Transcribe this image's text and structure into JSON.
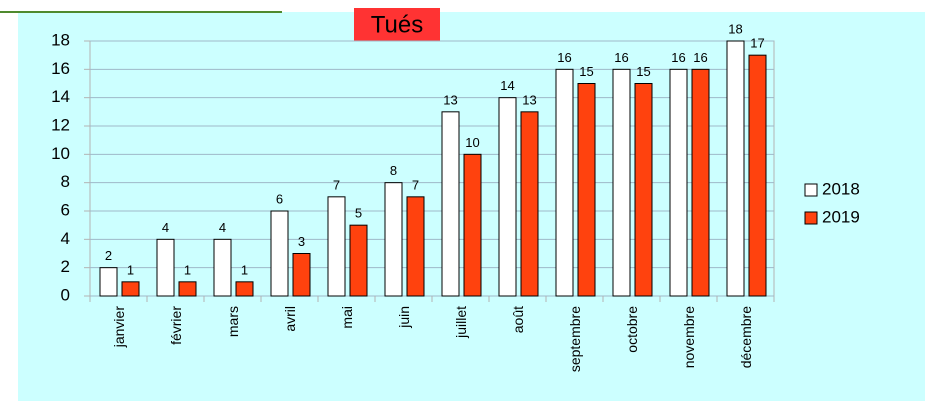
{
  "chart_data": {
    "type": "bar",
    "title": "Tués",
    "categories": [
      "janvier",
      "février",
      "mars",
      "avril",
      "mai",
      "juin",
      "juillet",
      "août",
      "septembre",
      "octobre",
      "novembre",
      "décembre"
    ],
    "series": [
      {
        "name": "2018",
        "color": "#ffffff",
        "values": [
          2,
          4,
          4,
          6,
          7,
          8,
          13,
          14,
          16,
          16,
          16,
          18
        ]
      },
      {
        "name": "2019",
        "color": "#ff420e",
        "values": [
          1,
          1,
          1,
          3,
          5,
          7,
          10,
          13,
          15,
          15,
          16,
          17
        ]
      }
    ],
    "ylim": [
      0,
      18
    ],
    "yticks": [
      0,
      2,
      4,
      6,
      8,
      10,
      12,
      14,
      16,
      18
    ],
    "grid": true,
    "legend": "right"
  }
}
